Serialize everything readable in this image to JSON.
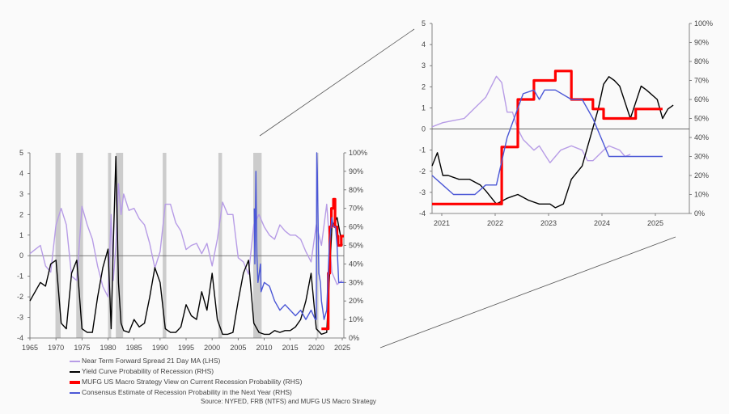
{
  "legend": {
    "items": [
      {
        "label": "Near Term Forward Spread 21 Day MA (LHS)",
        "color": "#b79ce6"
      },
      {
        "label": "Yield Curve Probability of Recession (RHS)",
        "color": "#000000"
      },
      {
        "label": "MUFG US Macro Strategy View on Current Recession Probability (RHS)",
        "color": "#ff0000"
      },
      {
        "label": "Consensus Estimate of Recession Probability in the Next Year (RHS)",
        "color": "#4b57d6"
      }
    ]
  },
  "source": "Source: NYFED, FRB (NTFS) and MUFG US Macro Strategy",
  "chart_data": [
    {
      "type": "line",
      "panel": "main",
      "x_ticks": [
        "1965",
        "1970",
        "1975",
        "1980",
        "1985",
        "1990",
        "1995",
        "2000",
        "2005",
        "2010",
        "2015",
        "2020",
        "2025"
      ],
      "y_left_ticks": [
        "5",
        "4",
        "3",
        "2",
        "1",
        "0",
        "-1",
        "-2",
        "-3",
        "-4"
      ],
      "y_right_ticks": [
        "100%",
        "90%",
        "80%",
        "70%",
        "60%",
        "50%",
        "40%",
        "30%",
        "20%",
        "10%",
        "0%"
      ],
      "xlim": [
        1965,
        2025.3
      ],
      "ylim_left": [
        -4,
        5
      ],
      "ylim_right": [
        0,
        100
      ],
      "recession_bands": [
        [
          1969.9,
          1970.9
        ],
        [
          1973.9,
          1975.2
        ],
        [
          1980.0,
          1980.6
        ],
        [
          1981.5,
          1982.9
        ],
        [
          1990.5,
          1991.2
        ],
        [
          2001.2,
          2001.9
        ],
        [
          2007.9,
          2009.5
        ],
        [
          2020.1,
          2020.4
        ]
      ],
      "series": [
        {
          "name": "Near Term Forward Spread 21 Day MA (LHS)",
          "axis": "left",
          "color": "#b79ce6",
          "x": [
            1965,
            1966,
            1967,
            1968,
            1969,
            1970,
            1971,
            1972,
            1973,
            1974,
            1975,
            1976,
            1977,
            1978,
            1979,
            1980,
            1980.6,
            1981,
            1981.5,
            1982,
            1982.5,
            1983,
            1984,
            1985,
            1986,
            1987,
            1988,
            1989,
            1990,
            1991,
            1992,
            1993,
            1994,
            1995,
            1996,
            1997,
            1998,
            1999,
            2000,
            2001,
            2002,
            2003,
            2004,
            2005,
            2006,
            2007,
            2008,
            2009,
            2010,
            2011,
            2012,
            2013,
            2014,
            2015,
            2016,
            2017,
            2018,
            2019,
            2020,
            2021,
            2022,
            2023,
            2024,
            2025
          ],
          "y": [
            0.1,
            0.3,
            0.5,
            -0.5,
            -0.8,
            1.5,
            2.3,
            1.5,
            -1.0,
            -1.2,
            2.4,
            1.5,
            0.8,
            -0.5,
            -1.5,
            -2.0,
            2.0,
            -1.2,
            0.5,
            3.5,
            2.0,
            3.0,
            2.2,
            2.3,
            1.8,
            1.5,
            0.6,
            -0.6,
            0.2,
            2.5,
            2.5,
            1.6,
            1.2,
            0.3,
            0.5,
            0.6,
            0.1,
            0.6,
            -0.5,
            0.8,
            2.6,
            2.0,
            2.0,
            -0.1,
            -0.3,
            -0.9,
            1.5,
            2.0,
            1.4,
            1.0,
            0.8,
            1.5,
            1.2,
            1.0,
            1.0,
            0.8,
            0.2,
            -0.3,
            1.5,
            0.5,
            2.5,
            -0.8,
            -1.4,
            -1.2
          ]
        },
        {
          "name": "Yield Curve Probability of Recession (RHS)",
          "axis": "right",
          "color": "#000000",
          "x": [
            1965,
            1966,
            1967,
            1968,
            1969,
            1970,
            1971,
            1972,
            1973,
            1974,
            1975,
            1976,
            1977,
            1978,
            1979,
            1980,
            1980.6,
            1981,
            1981.5,
            1982,
            1982.5,
            1983,
            1984,
            1985,
            1986,
            1987,
            1988,
            1989,
            1990,
            1991,
            1992,
            1993,
            1994,
            1995,
            1996,
            1997,
            1998,
            1999,
            2000,
            2001,
            2002,
            2003,
            2004,
            2005,
            2006,
            2007,
            2008,
            2009,
            2010,
            2011,
            2012,
            2013,
            2014,
            2015,
            2016,
            2017,
            2018,
            2019,
            2020,
            2021,
            2022,
            2023,
            2024,
            2025
          ],
          "y": [
            20,
            25,
            30,
            28,
            40,
            42,
            8,
            5,
            35,
            42,
            5,
            3,
            3,
            22,
            38,
            48,
            5,
            50,
            98,
            30,
            8,
            4,
            3,
            10,
            6,
            8,
            22,
            38,
            30,
            5,
            3,
            3,
            6,
            18,
            12,
            10,
            25,
            15,
            35,
            10,
            2,
            2,
            3,
            20,
            35,
            42,
            8,
            3,
            2,
            2,
            4,
            3,
            4,
            4,
            6,
            10,
            20,
            35,
            5,
            2,
            3,
            60,
            65,
            50
          ]
        },
        {
          "name": "MUFG US Macro Strategy View on Current Recession Probability (RHS)",
          "axis": "right",
          "color": "#ff0000",
          "x": [
            2021.0,
            2022.0,
            2022.3,
            2022.5,
            2022.6,
            2022.9,
            2023.2,
            2023.3,
            2023.5,
            2023.6,
            2023.9,
            2024.0,
            2024.2,
            2024.5,
            2024.8,
            2025.3
          ],
          "y": [
            5,
            5,
            35,
            35,
            60,
            70,
            70,
            75,
            75,
            60,
            60,
            55,
            50,
            50,
            55,
            55
          ]
        },
        {
          "name": "Consensus Estimate of Recession Probability in the Next Year (RHS)",
          "axis": "right",
          "color": "#4b57d6",
          "x": [
            2008.1,
            2008.2,
            2008.4,
            2008.6,
            2008.8,
            2009.3,
            2009.4,
            2010,
            2011,
            2012,
            2013,
            2014,
            2015,
            2016,
            2017,
            2018,
            2019,
            2019.8,
            2020.0,
            2020.1,
            2020.2,
            2020.5,
            2020.8,
            2021,
            2021.5,
            2022,
            2022.5,
            2023,
            2023.3,
            2023.7,
            2024.0,
            2024.3,
            2025.0,
            2025.3
          ],
          "y": [
            70,
            40,
            90,
            45,
            30,
            40,
            25,
            30,
            28,
            20,
            15,
            18,
            15,
            12,
            15,
            10,
            15,
            10,
            10,
            100,
            90,
            35,
            30,
            20,
            10,
            15,
            50,
            65,
            60,
            60,
            50,
            30,
            30,
            30
          ]
        }
      ]
    },
    {
      "type": "line",
      "panel": "inset",
      "x_ticks": [
        "2021",
        "2022",
        "2023",
        "2024",
        "2025"
      ],
      "y_left_ticks": [
        "5",
        "4",
        "3",
        "2",
        "1",
        "0",
        "-1",
        "-2",
        "-3",
        "-4"
      ],
      "y_right_ticks": [
        "100%",
        "90%",
        "80%",
        "70%",
        "60%",
        "50%",
        "40%",
        "30%",
        "20%",
        "10%",
        "0%"
      ],
      "xlim": [
        2021,
        2025.8
      ],
      "ylim_left": [
        -4,
        5
      ],
      "ylim_right": [
        0,
        100
      ],
      "series": [
        {
          "name": "Near Term Forward Spread 21 Day MA (LHS)",
          "axis": "left",
          "color": "#b79ce6",
          "x": [
            2021.0,
            2021.2,
            2021.4,
            2021.6,
            2021.8,
            2022.0,
            2022.2,
            2022.3,
            2022.4,
            2022.5,
            2022.6,
            2022.7,
            2022.9,
            2023.0,
            2023.1,
            2023.2,
            2023.3,
            2023.4,
            2023.6,
            2023.8,
            2023.9,
            2024.0,
            2024.2,
            2024.3,
            2024.5,
            2024.6,
            2024.7
          ],
          "y": [
            0.1,
            0.3,
            0.4,
            0.5,
            1.0,
            1.5,
            2.5,
            2.2,
            0.8,
            0.8,
            0.0,
            -0.5,
            -1.0,
            -0.8,
            -1.2,
            -1.6,
            -1.3,
            -1.0,
            -0.8,
            -1.0,
            -1.5,
            -1.5,
            -1.0,
            -0.8,
            -1.0,
            -1.3,
            -1.2
          ]
        },
        {
          "name": "Yield Curve Probability of Recession (RHS)",
          "axis": "right",
          "color": "#000000",
          "x": [
            2021.0,
            2021.1,
            2021.2,
            2021.3,
            2021.5,
            2021.7,
            2021.9,
            2022.0,
            2022.2,
            2022.4,
            2022.6,
            2022.8,
            2023.0,
            2023.2,
            2023.3,
            2023.45,
            2023.6,
            2023.8,
            2023.9,
            2024.0,
            2024.1,
            2024.2,
            2024.3,
            2024.4,
            2024.5,
            2024.7,
            2024.9,
            2025.0,
            2025.2,
            2025.3,
            2025.4,
            2025.5
          ],
          "y": [
            25,
            32,
            20,
            20,
            18,
            18,
            15,
            12,
            5,
            8,
            10,
            7,
            5,
            5,
            3,
            5,
            18,
            25,
            35,
            45,
            55,
            68,
            72,
            70,
            67,
            50,
            67,
            65,
            60,
            50,
            55,
            57
          ]
        },
        {
          "name": "MUFG US Macro Strategy View on Current Recession Probability (RHS)",
          "axis": "right",
          "color": "#ff0000",
          "x": [
            2021.0,
            2022.0,
            2022.3,
            2022.5,
            2022.6,
            2022.9,
            2023.2,
            2023.3,
            2023.5,
            2023.6,
            2023.9,
            2024.0,
            2024.2,
            2024.5,
            2024.8,
            2025.3
          ],
          "y": [
            5,
            5,
            35,
            35,
            60,
            70,
            70,
            75,
            75,
            60,
            60,
            55,
            50,
            50,
            55,
            55
          ]
        },
        {
          "name": "Consensus Estimate of Recession Probability in the Next Year (RHS)",
          "axis": "right",
          "color": "#4b57d6",
          "x": [
            2021.0,
            2021.2,
            2021.4,
            2021.6,
            2021.8,
            2022.0,
            2022.2,
            2022.4,
            2022.7,
            2022.9,
            2023.0,
            2023.1,
            2023.2,
            2023.3,
            2023.6,
            2023.8,
            2024.0,
            2024.3,
            2024.6,
            2025.0,
            2025.3
          ],
          "y": [
            20,
            15,
            10,
            10,
            10,
            15,
            15,
            40,
            63,
            65,
            60,
            65,
            65,
            65,
            60,
            60,
            50,
            30,
            30,
            30,
            30
          ]
        }
      ]
    }
  ]
}
